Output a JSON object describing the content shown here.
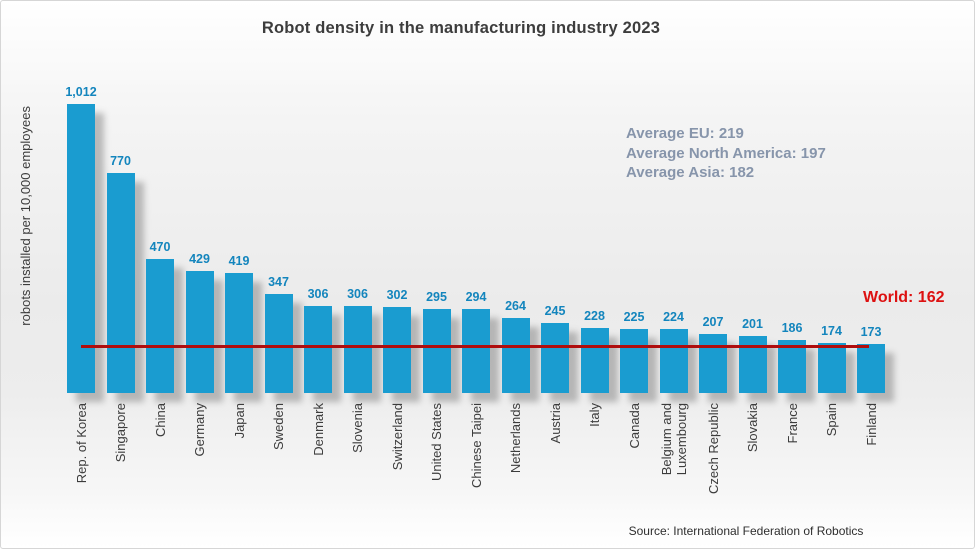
{
  "source": "Source: International Federation of Robotics",
  "colors": {
    "bar": "#1a9cd0",
    "value_label": "#1385bd",
    "world_red": "#dd1111",
    "line_red": "#b00d0d",
    "annotation_blue_gray": "#8795ab",
    "title_gray": "#3d3d3d",
    "axis_gray": "#3c3c3c"
  },
  "chart_data": {
    "type": "bar",
    "title": "Robot density in the manufacturing industry 2023",
    "ylabel": "robots installed per 10,000 employees",
    "xlabel": "",
    "categories": [
      "Rep. of Korea",
      "Singapore",
      "China",
      "Germany",
      "Japan",
      "Sweden",
      "Denmark",
      "Slovenia",
      "Switzerland",
      "United States",
      "Chinese Taipei",
      "Netherlands",
      "Austria",
      "Italy",
      "Canada",
      "Belgium and\nLuxembourg",
      "Czech Republic",
      "Slovakia",
      "France",
      "Spain",
      "Finland"
    ],
    "values": [
      1012,
      770,
      470,
      429,
      419,
      347,
      306,
      306,
      302,
      295,
      294,
      264,
      245,
      228,
      225,
      224,
      207,
      201,
      186,
      174,
      173
    ],
    "value_labels": [
      "1,012",
      "770",
      "470",
      "429",
      "419",
      "347",
      "306",
      "306",
      "302",
      "295",
      "294",
      "264",
      "245",
      "228",
      "225",
      "224",
      "207",
      "201",
      "186",
      "174",
      "173"
    ],
    "annotations": [
      "Average EU: 219",
      "Average North America: 197",
      "Average Asia: 182"
    ],
    "world_line": {
      "label": "World: 162",
      "value": 162
    },
    "ylim": [
      0,
      1050
    ],
    "grid": false,
    "legend": false,
    "bar_labels_rotated": true
  }
}
